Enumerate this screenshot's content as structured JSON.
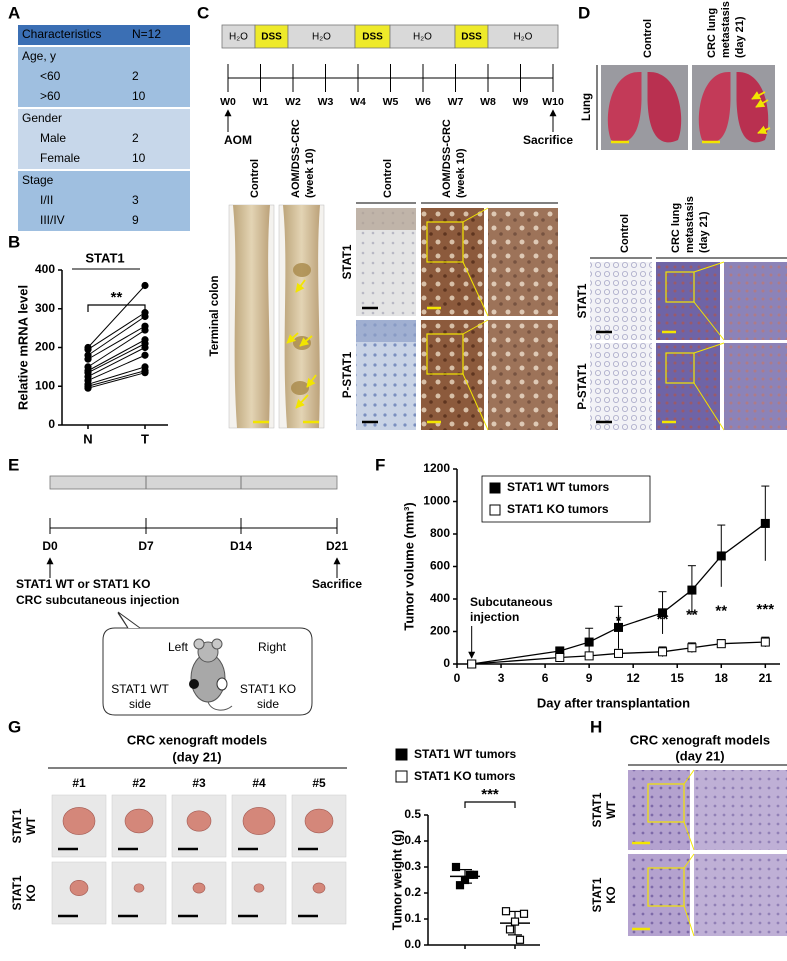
{
  "panel_labels": [
    "A",
    "B",
    "C",
    "D",
    "E",
    "F",
    "G",
    "H"
  ],
  "table": {
    "header": [
      "Characteristics",
      "N=12"
    ],
    "groups": [
      {
        "title": "Age, y",
        "rows": [
          [
            "<60",
            2
          ],
          [
            ">60",
            10
          ]
        ]
      },
      {
        "title": "Gender",
        "rows": [
          [
            "Male",
            2
          ],
          [
            "Female",
            10
          ]
        ]
      },
      {
        "title": "Stage",
        "rows": [
          [
            "I/II",
            3
          ],
          [
            "III/IV",
            9
          ]
        ]
      }
    ]
  },
  "chart_data": [
    {
      "type": "paired",
      "title": "STAT1",
      "categories": [
        "N",
        "T"
      ],
      "pairs": [
        [
          95,
          135
        ],
        [
          100,
          140
        ],
        [
          105,
          150
        ],
        [
          115,
          180
        ],
        [
          125,
          200
        ],
        [
          135,
          210
        ],
        [
          140,
          220
        ],
        [
          150,
          245
        ],
        [
          170,
          255
        ],
        [
          180,
          280
        ],
        [
          195,
          290
        ],
        [
          200,
          360
        ]
      ],
      "ylabel": "Relative mRNA level",
      "ylim": [
        0,
        400
      ],
      "yticks": [
        0,
        100,
        200,
        300,
        400
      ],
      "significance": "**",
      "color": "#000000"
    },
    {
      "type": "line",
      "xlabel": "Day after transplantation",
      "ylabel": "Tumor volume (mm³)",
      "x": [
        1,
        7,
        9,
        11,
        14,
        16,
        18,
        21
      ],
      "series": [
        {
          "name": "STAT1 WT tumors",
          "marker": "filled",
          "values": [
            0,
            80,
            135,
            225,
            315,
            455,
            665,
            865
          ],
          "errors": [
            0,
            25,
            85,
            130,
            130,
            150,
            190,
            230
          ]
        },
        {
          "name": "STAT1 KO tumors",
          "marker": "open",
          "values": [
            0,
            40,
            50,
            65,
            75,
            100,
            125,
            135
          ],
          "errors": [
            0,
            15,
            20,
            25,
            30,
            30,
            25,
            30
          ]
        }
      ],
      "xlim": [
        0,
        22
      ],
      "xticks": [
        0,
        3,
        6,
        9,
        12,
        15,
        18,
        21
      ],
      "ylim": [
        0,
        1200
      ],
      "yticks": [
        0,
        200,
        400,
        600,
        800,
        1000,
        1200
      ],
      "annotation": [
        "Subcutaneous",
        "injection"
      ],
      "significance": [
        {
          "x": 11,
          "label": "*"
        },
        {
          "x": 14,
          "label": "**"
        },
        {
          "x": 16,
          "label": "**"
        },
        {
          "x": 18,
          "label": "**"
        },
        {
          "x": 21,
          "label": "***"
        }
      ]
    },
    {
      "type": "dot",
      "ylabel": "Tumor weight (g)",
      "series": [
        {
          "name": "STAT1 WT tumors",
          "marker": "filled",
          "values": [
            0.3,
            0.25,
            0.27,
            0.23,
            0.27
          ]
        },
        {
          "name": "STAT1 KO tumors",
          "marker": "open",
          "values": [
            0.13,
            0.09,
            0.12,
            0.06,
            0.02
          ]
        }
      ],
      "ylim": [
        0,
        0.5
      ],
      "yticks": [
        {
          "value": 0,
          "label": "0.0"
        },
        {
          "value": 0.1,
          "label": "0.1"
        },
        {
          "value": 0.2,
          "label": "0.2"
        },
        {
          "value": 0.3,
          "label": "0.3"
        },
        {
          "value": 0.4,
          "label": "0.4"
        },
        {
          "value": 0.5,
          "label": "0.5"
        }
      ],
      "significance": "***"
    }
  ],
  "timeline_c": {
    "segments": [
      "H₂O",
      "DSS",
      "H₂O",
      "DSS",
      "H₂O",
      "DSS",
      "H₂O"
    ],
    "weeks": [
      "W0",
      "W1",
      "W2",
      "W3",
      "W4",
      "W5",
      "W6",
      "W7",
      "W8",
      "W9",
      "W10"
    ],
    "start": "AOM",
    "end": "Sacrifice"
  },
  "colon": {
    "column_headers": [
      [
        "Control"
      ],
      [
        "AOM/DSS-CRC",
        "(week 10)"
      ]
    ],
    "row_label": "Terminal colon"
  },
  "ihc_c": {
    "column_headers": [
      [
        "Control"
      ],
      [
        "AOM/DSS-CRC",
        "(week 10)"
      ]
    ],
    "row_labels": [
      "STAT1",
      "P-STAT1"
    ]
  },
  "lung": {
    "column_headers": [
      [
        "Control"
      ],
      [
        "CRC lung",
        "metastasis",
        "(day 21)"
      ]
    ],
    "row_label": "Lung"
  },
  "ihc_d": {
    "column_headers": [
      [
        "Control"
      ],
      [
        "CRC lung",
        "metastasis",
        "(day 21)"
      ]
    ],
    "row_labels": [
      "STAT1",
      "P-STAT1"
    ]
  },
  "timeline_e": {
    "days": [
      "D0",
      "D7",
      "D14",
      "D21"
    ],
    "start": [
      "STAT1 WT or STAT1 KO",
      "CRC subcutaneous injection"
    ],
    "end": "Sacrifice",
    "bubble": {
      "left": "Left",
      "right": "Right",
      "left_side": [
        "STAT1 WT",
        "side"
      ],
      "right_side": [
        "STAT1 KO",
        "side"
      ]
    }
  },
  "xenograft": {
    "title": [
      "CRC xenograft models",
      "(day 21)"
    ],
    "columns": [
      "#1",
      "#2",
      "#3",
      "#4",
      "#5"
    ],
    "row_labels": [
      [
        "STAT1",
        "WT"
      ],
      [
        "STAT1",
        "KO"
      ]
    ]
  },
  "ihc_h": {
    "title": [
      "CRC xenograft models",
      "(day 21)"
    ],
    "row_labels": [
      [
        "STAT1",
        "WT"
      ],
      [
        "STAT1",
        "KO"
      ]
    ]
  }
}
